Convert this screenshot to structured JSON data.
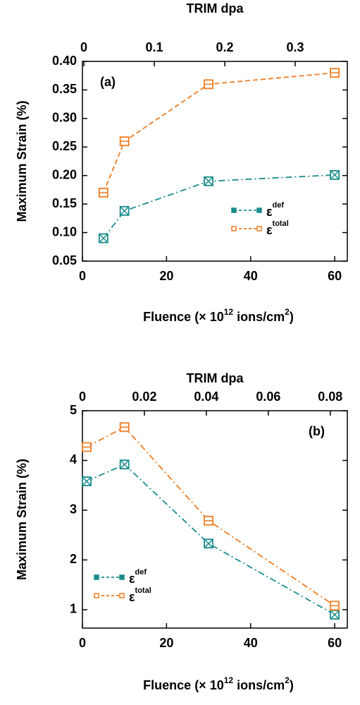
{
  "chart_data": [
    {
      "type": "line",
      "annotation": "(a)",
      "x_label": [
        "Fluence (× 10",
        "12",
        " ions/cm",
        "2",
        ")"
      ],
      "x2_label": "TRIM dpa",
      "y_label": "Maximum Strain (%)",
      "x": [
        5,
        10,
        30,
        60
      ],
      "series": [
        {
          "name": "ε",
          "name_superscript": "def",
          "color": "#1a8c8c",
          "marker": "box-x",
          "dash": "9 4 2 4",
          "values": [
            0.09,
            0.138,
            0.19,
            0.201
          ]
        },
        {
          "name": "ε",
          "name_superscript": "total",
          "color": "#f07c22",
          "marker": "box-minus",
          "dash": "7 4",
          "values": [
            0.17,
            0.26,
            0.36,
            0.38
          ]
        }
      ],
      "xlim": [
        0,
        63
      ],
      "xticks": [
        0,
        20,
        40,
        60
      ],
      "x2lim": [
        -0.002,
        0.374
      ],
      "x2ticks": [
        0,
        0.1,
        0.2,
        0.3
      ],
      "ylim": [
        0.05,
        0.4
      ],
      "yticks": [
        0.05,
        {
          "value": 0.1,
          "label": "0.10"
        },
        0.15,
        {
          "value": 0.2,
          "label": "0.20"
        },
        0.25,
        {
          "value": 0.3,
          "label": "0.30"
        },
        0.35,
        {
          "value": 0.4,
          "label": "0.40"
        }
      ],
      "legend": "lower right"
    },
    {
      "type": "line",
      "annotation": "(b)",
      "x_label": [
        "Fluence (× 10",
        "12",
        " ions/cm",
        "2",
        ")"
      ],
      "x2_label": "TRIM dpa",
      "y_label": "Maximum Strain (%)",
      "x": [
        1,
        10,
        30,
        60
      ],
      "series": [
        {
          "name": "ε",
          "name_superscript": "def",
          "color": "#1a8c8c",
          "marker": "box-x",
          "dash": "9 4 2 4",
          "values": [
            3.58,
            3.92,
            2.33,
            0.9
          ]
        },
        {
          "name": "ε",
          "name_superscript": "total",
          "color": "#f07c22",
          "marker": "box-minus",
          "dash": "9 4 2 4",
          "values": [
            4.27,
            4.67,
            2.79,
            1.08
          ]
        }
      ],
      "xlim": [
        0,
        63
      ],
      "xticks": [
        0,
        20,
        40,
        60
      ],
      "x2lim": [
        0,
        0.0855
      ],
      "x2ticks": [
        0,
        0.02,
        0.04,
        0.06,
        0.08
      ],
      "ylim": [
        0.63,
        5
      ],
      "yticks": [
        1,
        2,
        3,
        4,
        5
      ],
      "legend": "lower left"
    }
  ]
}
